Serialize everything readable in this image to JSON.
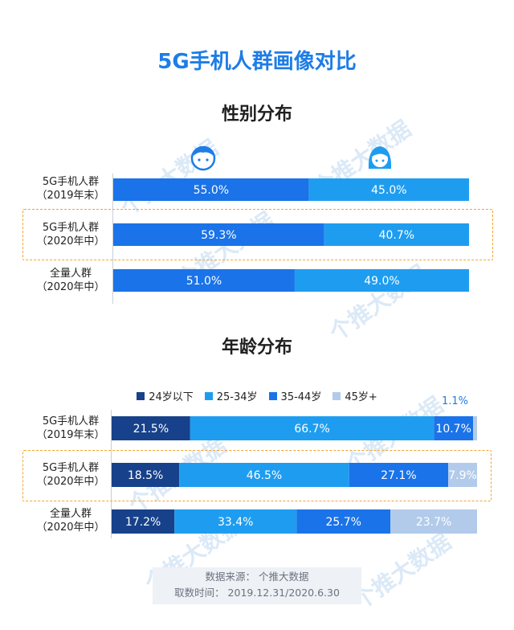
{
  "title": "5G手机人群画像对比",
  "gender": {
    "subtitle": "性别分布",
    "icons": [
      "male-face-icon",
      "female-face-icon"
    ],
    "colors": [
      "#1a73e8",
      "#1e9df0"
    ],
    "rows": [
      {
        "label1": "5G手机人群",
        "label2": "（2019年末）",
        "values": [
          55.0,
          45.0
        ],
        "texts": [
          "55.0%",
          "45.0%"
        ],
        "highlight": false
      },
      {
        "label1": "5G手机人群",
        "label2": "（2020年中）",
        "values": [
          59.3,
          40.7
        ],
        "texts": [
          "59.3%",
          "40.7%"
        ],
        "highlight": true
      },
      {
        "label1": "全量人群",
        "label2": "（2020年中）",
        "values": [
          51.0,
          49.0
        ],
        "texts": [
          "51.0%",
          "49.0%"
        ],
        "highlight": false
      }
    ]
  },
  "age": {
    "subtitle": "年龄分布",
    "legend": [
      "24岁以下",
      "25-34岁",
      "35-44岁",
      "45岁+"
    ],
    "colors": [
      "#17418a",
      "#1e9df0",
      "#1a73e8",
      "#b2cbea"
    ],
    "note": "1.1%",
    "rows": [
      {
        "label1": "5G手机人群",
        "label2": "（2019年末）",
        "values": [
          21.5,
          66.7,
          10.7,
          1.1
        ],
        "texts": [
          "21.5%",
          "66.7%",
          "10.7%",
          ""
        ],
        "highlight": false
      },
      {
        "label1": "5G手机人群",
        "label2": "（2020年中）",
        "values": [
          18.5,
          46.5,
          27.1,
          7.9
        ],
        "texts": [
          "18.5%",
          "46.5%",
          "27.1%",
          "7.9%"
        ],
        "highlight": true
      },
      {
        "label1": "全量人群",
        "label2": "（2020年中）",
        "values": [
          17.2,
          33.4,
          25.7,
          23.7
        ],
        "texts": [
          "17.2%",
          "33.4%",
          "25.7%",
          "23.7%"
        ],
        "highlight": false
      }
    ]
  },
  "watermark": "个推大数据",
  "source": {
    "line1": "数据来源：  个推大数据",
    "line2": "取数时间：  2019.12.31/2020.6.30"
  },
  "chart_data": [
    {
      "type": "bar",
      "title": "性别分布",
      "categories": [
        "5G手机人群（2019年末）",
        "5G手机人群（2020年中）",
        "全量人群（2020年中）"
      ],
      "series": [
        {
          "values": [
            55.0,
            59.3,
            51.0
          ]
        },
        {
          "values": [
            45.0,
            40.7,
            49.0
          ]
        }
      ],
      "stacked": true,
      "unit": "%"
    },
    {
      "type": "bar",
      "title": "年龄分布",
      "categories": [
        "5G手机人群（2019年末）",
        "5G手机人群（2020年中）",
        "全量人群（2020年中）"
      ],
      "series": [
        {
          "name": "24岁以下",
          "values": [
            21.5,
            18.5,
            17.2
          ]
        },
        {
          "name": "25-34岁",
          "values": [
            66.7,
            46.5,
            33.4
          ]
        },
        {
          "name": "35-44岁",
          "values": [
            10.7,
            27.1,
            25.7
          ]
        },
        {
          "name": "45岁+",
          "values": [
            1.1,
            7.9,
            23.7
          ]
        }
      ],
      "stacked": true,
      "unit": "%",
      "legend": "top"
    }
  ]
}
